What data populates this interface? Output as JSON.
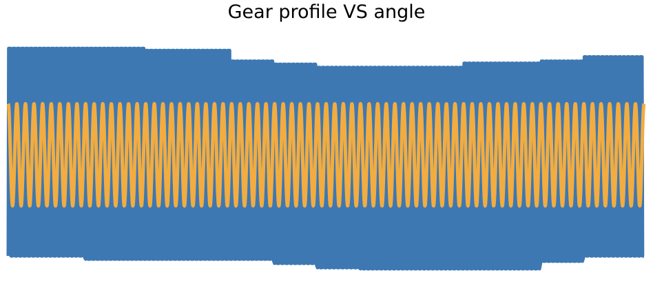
{
  "chart_data": {
    "type": "line",
    "title": "Gear profile VS angle",
    "xlabel": "",
    "ylabel": "",
    "axes_visible": false,
    "grid": false,
    "ylim": [
      -1.15,
      1.15
    ],
    "series": [
      {
        "color": "#3d78b3",
        "profile": "square-wave gear teeth",
        "teeth": 74,
        "segments": [
          {
            "x_start": 0.0,
            "x_end": 0.122,
            "high": 1.0,
            "low": -0.95
          },
          {
            "x_start": 0.122,
            "x_end": 0.214,
            "high": 1.0,
            "low": -0.98
          },
          {
            "x_start": 0.214,
            "x_end": 0.353,
            "high": 0.98,
            "low": -0.98
          },
          {
            "x_start": 0.353,
            "x_end": 0.415,
            "high": 0.88,
            "low": -0.98
          },
          {
            "x_start": 0.415,
            "x_end": 0.49,
            "high": 0.85,
            "low": -1.02
          },
          {
            "x_start": 0.49,
            "x_end": 0.56,
            "high": 0.82,
            "low": -1.06
          },
          {
            "x_start": 0.56,
            "x_end": 0.72,
            "high": 0.82,
            "low": -1.07
          },
          {
            "x_start": 0.72,
            "x_end": 0.84,
            "high": 0.86,
            "low": -1.07
          },
          {
            "x_start": 0.84,
            "x_end": 0.9,
            "high": 0.88,
            "low": -1.0
          },
          {
            "x_start": 0.9,
            "x_end": 1.0,
            "high": 0.92,
            "low": -0.95
          }
        ]
      },
      {
        "color": "#f2ac40",
        "profile": "sinusoid",
        "cycles": 74,
        "amplitude": 0.48,
        "phase": 0.25
      }
    ]
  }
}
